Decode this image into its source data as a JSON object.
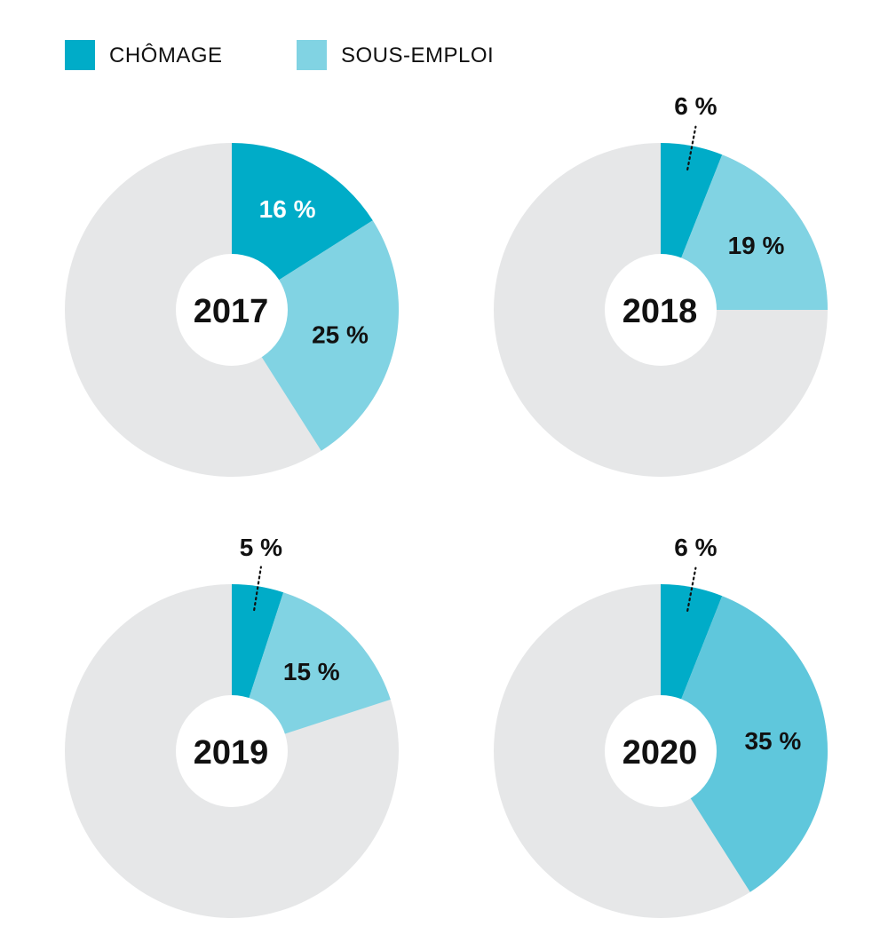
{
  "legend": [
    {
      "label": "CHÔMAGE",
      "color": "#00acc8"
    },
    {
      "label": "SOUS-EMPLOI",
      "color": "#81d3e3"
    }
  ],
  "colors": {
    "chomage": "#00acc8",
    "sous_emploi": "#81d3e3",
    "sous_emploi_2020": "#5fc7dc",
    "remainder": "#e6e7e8",
    "hole": "#ffffff",
    "text_dark": "#111111",
    "text_light": "#ffffff"
  },
  "chart_data": [
    {
      "type": "pie",
      "year": "2017",
      "slices": [
        {
          "series": "CHÔMAGE",
          "value": 16,
          "label": "16 %"
        },
        {
          "series": "SOUS-EMPLOI",
          "value": 25,
          "label": "25 %"
        }
      ]
    },
    {
      "type": "pie",
      "year": "2018",
      "slices": [
        {
          "series": "CHÔMAGE",
          "value": 6,
          "label": "6 %"
        },
        {
          "series": "SOUS-EMPLOI",
          "value": 19,
          "label": "19 %"
        }
      ]
    },
    {
      "type": "pie",
      "year": "2019",
      "slices": [
        {
          "series": "CHÔMAGE",
          "value": 5,
          "label": "5 %"
        },
        {
          "series": "SOUS-EMPLOI",
          "value": 15,
          "label": "15 %"
        }
      ]
    },
    {
      "type": "pie",
      "year": "2020",
      "slices": [
        {
          "series": "CHÔMAGE",
          "value": 6,
          "label": "6 %"
        },
        {
          "series": "SOUS-EMPLOI",
          "value": 35,
          "label": "35 %"
        }
      ]
    }
  ]
}
